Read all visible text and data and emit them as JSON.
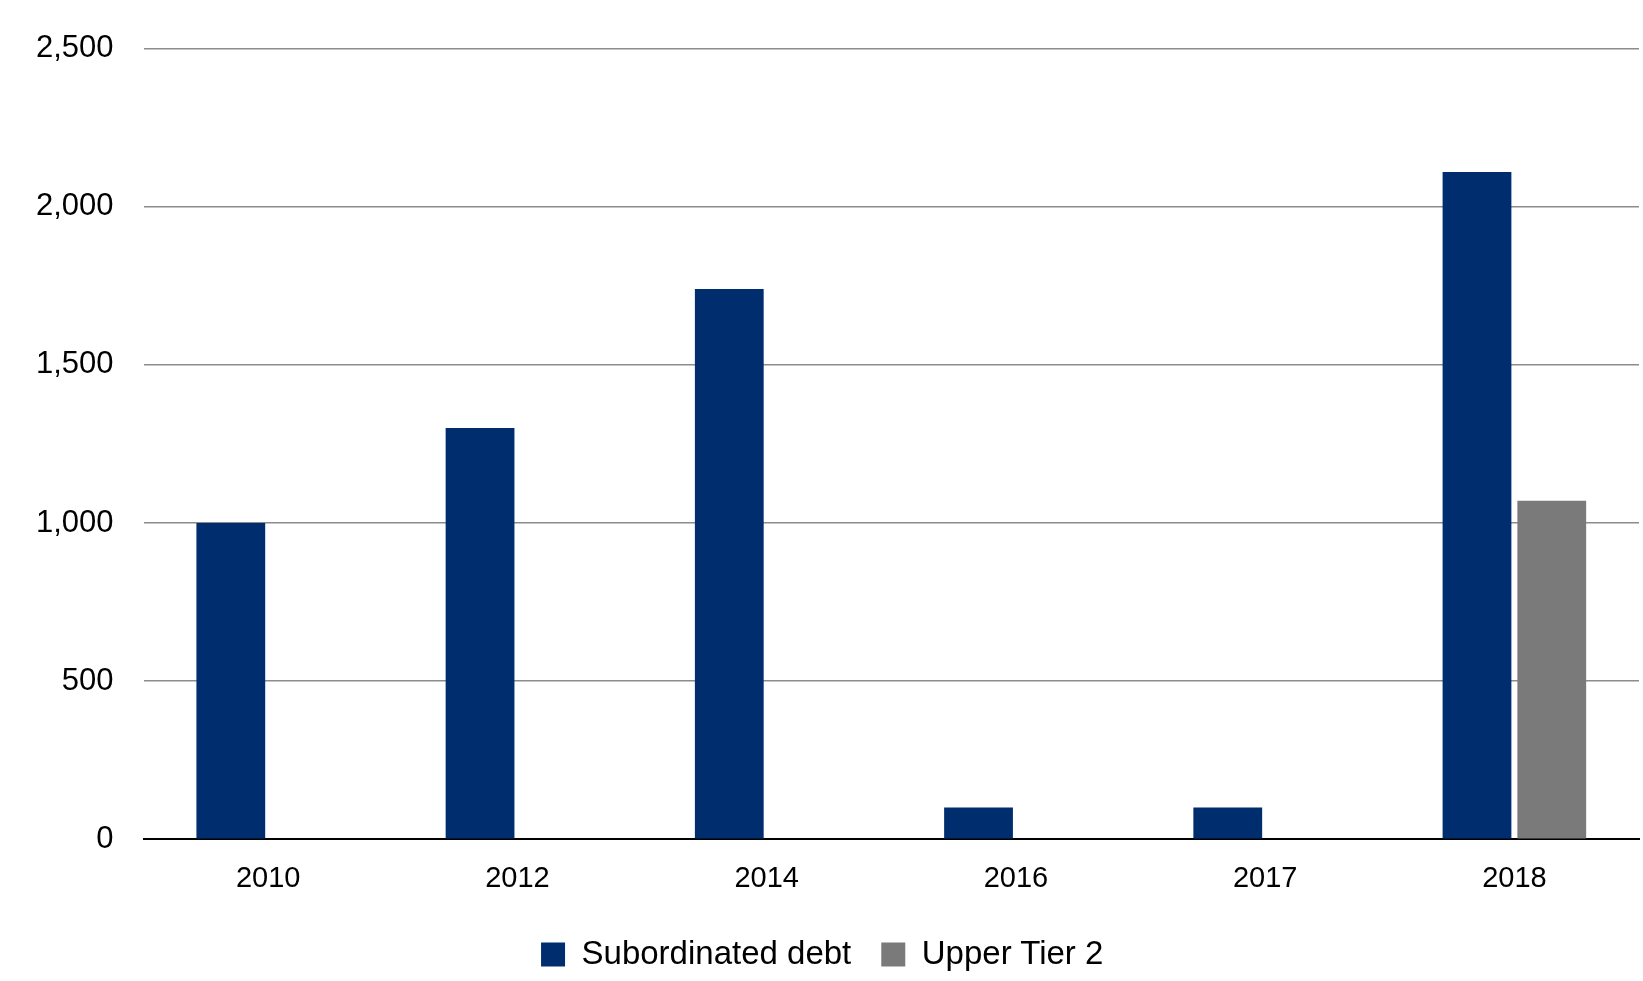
{
  "chart_data": {
    "type": "bar",
    "categories": [
      "2010",
      "2012",
      "2014",
      "2016",
      "2017",
      "2018"
    ],
    "series": [
      {
        "name": "Subordinated debt",
        "color": "#002d6e",
        "values": [
          1000,
          1300,
          1740,
          100,
          100,
          2110
        ]
      },
      {
        "name": "Upper Tier 2",
        "color": "#7a7a7a",
        "values": [
          null,
          null,
          null,
          null,
          null,
          1070
        ]
      }
    ],
    "ylim": [
      0,
      2500
    ],
    "yticks": [
      {
        "value": 0,
        "label": "0"
      },
      {
        "value": 500,
        "label": "500"
      },
      {
        "value": 1000,
        "label": "1,000"
      },
      {
        "value": 1500,
        "label": "1,500"
      },
      {
        "value": 2000,
        "label": "2,000"
      },
      {
        "value": 2500,
        "label": "2,500"
      }
    ],
    "grid": "y",
    "legend": "bottom"
  }
}
